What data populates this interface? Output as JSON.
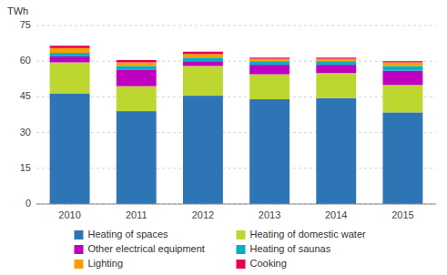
{
  "chart_data": {
    "type": "bar",
    "stacked": true,
    "y_label": "TWh",
    "categories": [
      "2010",
      "2011",
      "2012",
      "2013",
      "2014",
      "2015"
    ],
    "series": [
      {
        "name": "Heating of spaces",
        "color": "#2e75b6",
        "values": [
          46.5,
          39.0,
          45.5,
          44.0,
          44.5,
          38.5
        ]
      },
      {
        "name": "Heating of domestic water",
        "color": "#bdd730",
        "values": [
          13.0,
          10.5,
          12.5,
          10.5,
          10.5,
          11.5
        ]
      },
      {
        "name": "Other electrical equipment",
        "color": "#c000c0",
        "values": [
          2.5,
          7.0,
          2.0,
          4.0,
          3.5,
          6.0
        ]
      },
      {
        "name": "Heating of saunas",
        "color": "#00b0c8",
        "values": [
          1.5,
          1.5,
          1.5,
          1.5,
          1.5,
          2.0
        ]
      },
      {
        "name": "Lighting",
        "color": "#f5a000",
        "values": [
          2.0,
          1.5,
          1.5,
          1.0,
          1.0,
          1.5
        ]
      },
      {
        "name": "Cooking",
        "color": "#e8004a",
        "values": [
          1.0,
          1.0,
          1.0,
          0.5,
          0.5,
          0.5
        ]
      }
    ],
    "ylim": [
      0,
      75
    ],
    "yticks": [
      0,
      15,
      30,
      45,
      60,
      75
    ],
    "grid": true,
    "legend": "bottom"
  }
}
